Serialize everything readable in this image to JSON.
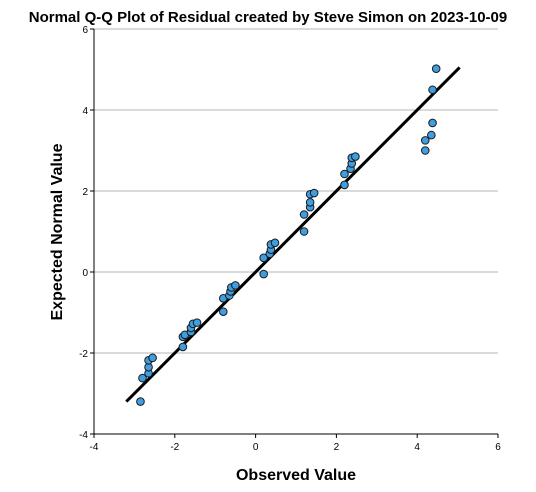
{
  "chart_data": {
    "type": "scatter",
    "title": "Normal Q-Q Plot of Residual created by Steve Simon on 2023-10-09",
    "xlabel": "Observed Value",
    "ylabel": "Expected Normal Value",
    "xlim": [
      -4,
      6
    ],
    "ylim": [
      -4,
      6
    ],
    "xticks": [
      "-4",
      "-2",
      "0",
      "2",
      "4",
      "6"
    ],
    "yticks": [
      "-4",
      "-2",
      "0",
      "2",
      "4",
      "6"
    ],
    "grid": "horizontal",
    "point_color": "#3d9ee0",
    "line_color": "#000000",
    "reference_line": {
      "x": [
        -3.2,
        5.05
      ],
      "y": [
        -3.2,
        5.05
      ]
    },
    "points": [
      {
        "x": -2.85,
        "y": -3.2
      },
      {
        "x": -2.8,
        "y": -2.62
      },
      {
        "x": -2.65,
        "y": -2.5
      },
      {
        "x": -2.65,
        "y": -2.35
      },
      {
        "x": -2.65,
        "y": -2.18
      },
      {
        "x": -2.55,
        "y": -2.12
      },
      {
        "x": -1.8,
        "y": -1.85
      },
      {
        "x": -1.8,
        "y": -1.6
      },
      {
        "x": -1.75,
        "y": -1.55
      },
      {
        "x": -1.6,
        "y": -1.48
      },
      {
        "x": -1.6,
        "y": -1.38
      },
      {
        "x": -1.55,
        "y": -1.28
      },
      {
        "x": -1.45,
        "y": -1.25
      },
      {
        "x": -0.8,
        "y": -0.98
      },
      {
        "x": -0.8,
        "y": -0.65
      },
      {
        "x": -0.65,
        "y": -0.58
      },
      {
        "x": -0.62,
        "y": -0.48
      },
      {
        "x": -0.6,
        "y": -0.38
      },
      {
        "x": -0.5,
        "y": -0.33
      },
      {
        "x": 0.2,
        "y": -0.05
      },
      {
        "x": 0.2,
        "y": 0.35
      },
      {
        "x": 0.35,
        "y": 0.45
      },
      {
        "x": 0.38,
        "y": 0.55
      },
      {
        "x": 0.38,
        "y": 0.68
      },
      {
        "x": 0.48,
        "y": 0.72
      },
      {
        "x": 1.2,
        "y": 1.0
      },
      {
        "x": 1.2,
        "y": 1.42
      },
      {
        "x": 1.35,
        "y": 1.6
      },
      {
        "x": 1.35,
        "y": 1.72
      },
      {
        "x": 1.35,
        "y": 1.92
      },
      {
        "x": 1.45,
        "y": 1.95
      },
      {
        "x": 2.2,
        "y": 2.15
      },
      {
        "x": 2.2,
        "y": 2.42
      },
      {
        "x": 2.35,
        "y": 2.55
      },
      {
        "x": 2.38,
        "y": 2.68
      },
      {
        "x": 2.38,
        "y": 2.82
      },
      {
        "x": 2.47,
        "y": 2.85
      },
      {
        "x": 4.2,
        "y": 3.0
      },
      {
        "x": 4.2,
        "y": 3.25
      },
      {
        "x": 4.35,
        "y": 3.38
      },
      {
        "x": 4.38,
        "y": 3.68
      },
      {
        "x": 4.38,
        "y": 4.5
      },
      {
        "x": 4.47,
        "y": 5.02
      }
    ]
  }
}
